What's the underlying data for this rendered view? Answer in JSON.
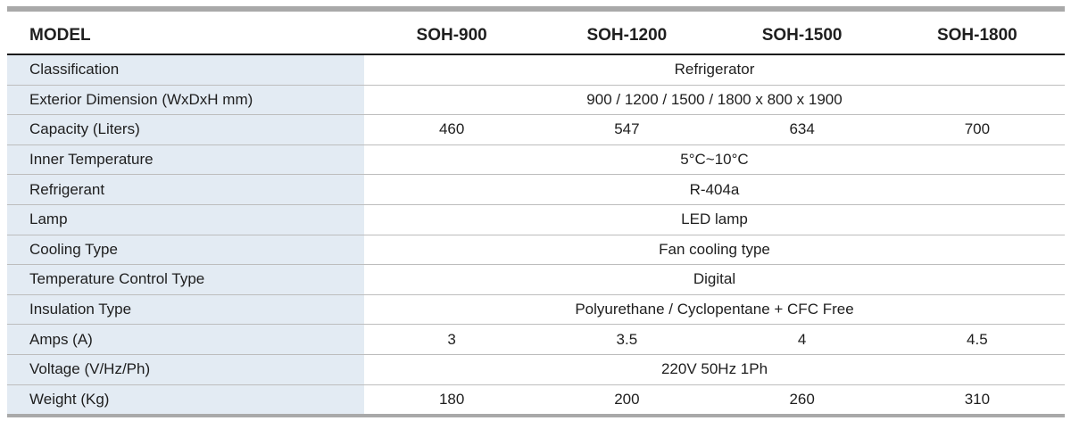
{
  "table": {
    "header": {
      "label": "MODEL",
      "models": [
        "SOH-900",
        "SOH-1200",
        "SOH-1500",
        "SOH-1800"
      ]
    },
    "rows": [
      {
        "label": "Classification",
        "value": "Refrigerator"
      },
      {
        "label": "Exterior Dimension (WxDxH mm)",
        "value": "900 / 1200 / 1500 / 1800 x 800 x 1900"
      },
      {
        "label": "Capacity (Liters)",
        "values": [
          "460",
          "547",
          "634",
          "700"
        ]
      },
      {
        "label": "Inner Temperature",
        "value": "5°C~10°C"
      },
      {
        "label": "Refrigerant",
        "value": "R-404a"
      },
      {
        "label": "Lamp",
        "value": "LED lamp"
      },
      {
        "label": "Cooling Type",
        "value": "Fan cooling type"
      },
      {
        "label": "Temperature Control Type",
        "value": "Digital"
      },
      {
        "label": "Insulation Type",
        "value": "Polyurethane / Cyclopentane + CFC Free"
      },
      {
        "label": "Amps (A)",
        "values": [
          "3",
          "3.5",
          "4",
          "4.5"
        ]
      },
      {
        "label": "Voltage (V/Hz/Ph)",
        "value": "220V 50Hz 1Ph"
      },
      {
        "label": "Weight (Kg)",
        "values": [
          "180",
          "200",
          "260",
          "310"
        ]
      }
    ]
  },
  "colors": {
    "label_bg": "#e3ebf3",
    "rule_bar": "#a9a9a9",
    "header_rule": "#1a1a1a",
    "row_rule": "#bdbdbd"
  }
}
